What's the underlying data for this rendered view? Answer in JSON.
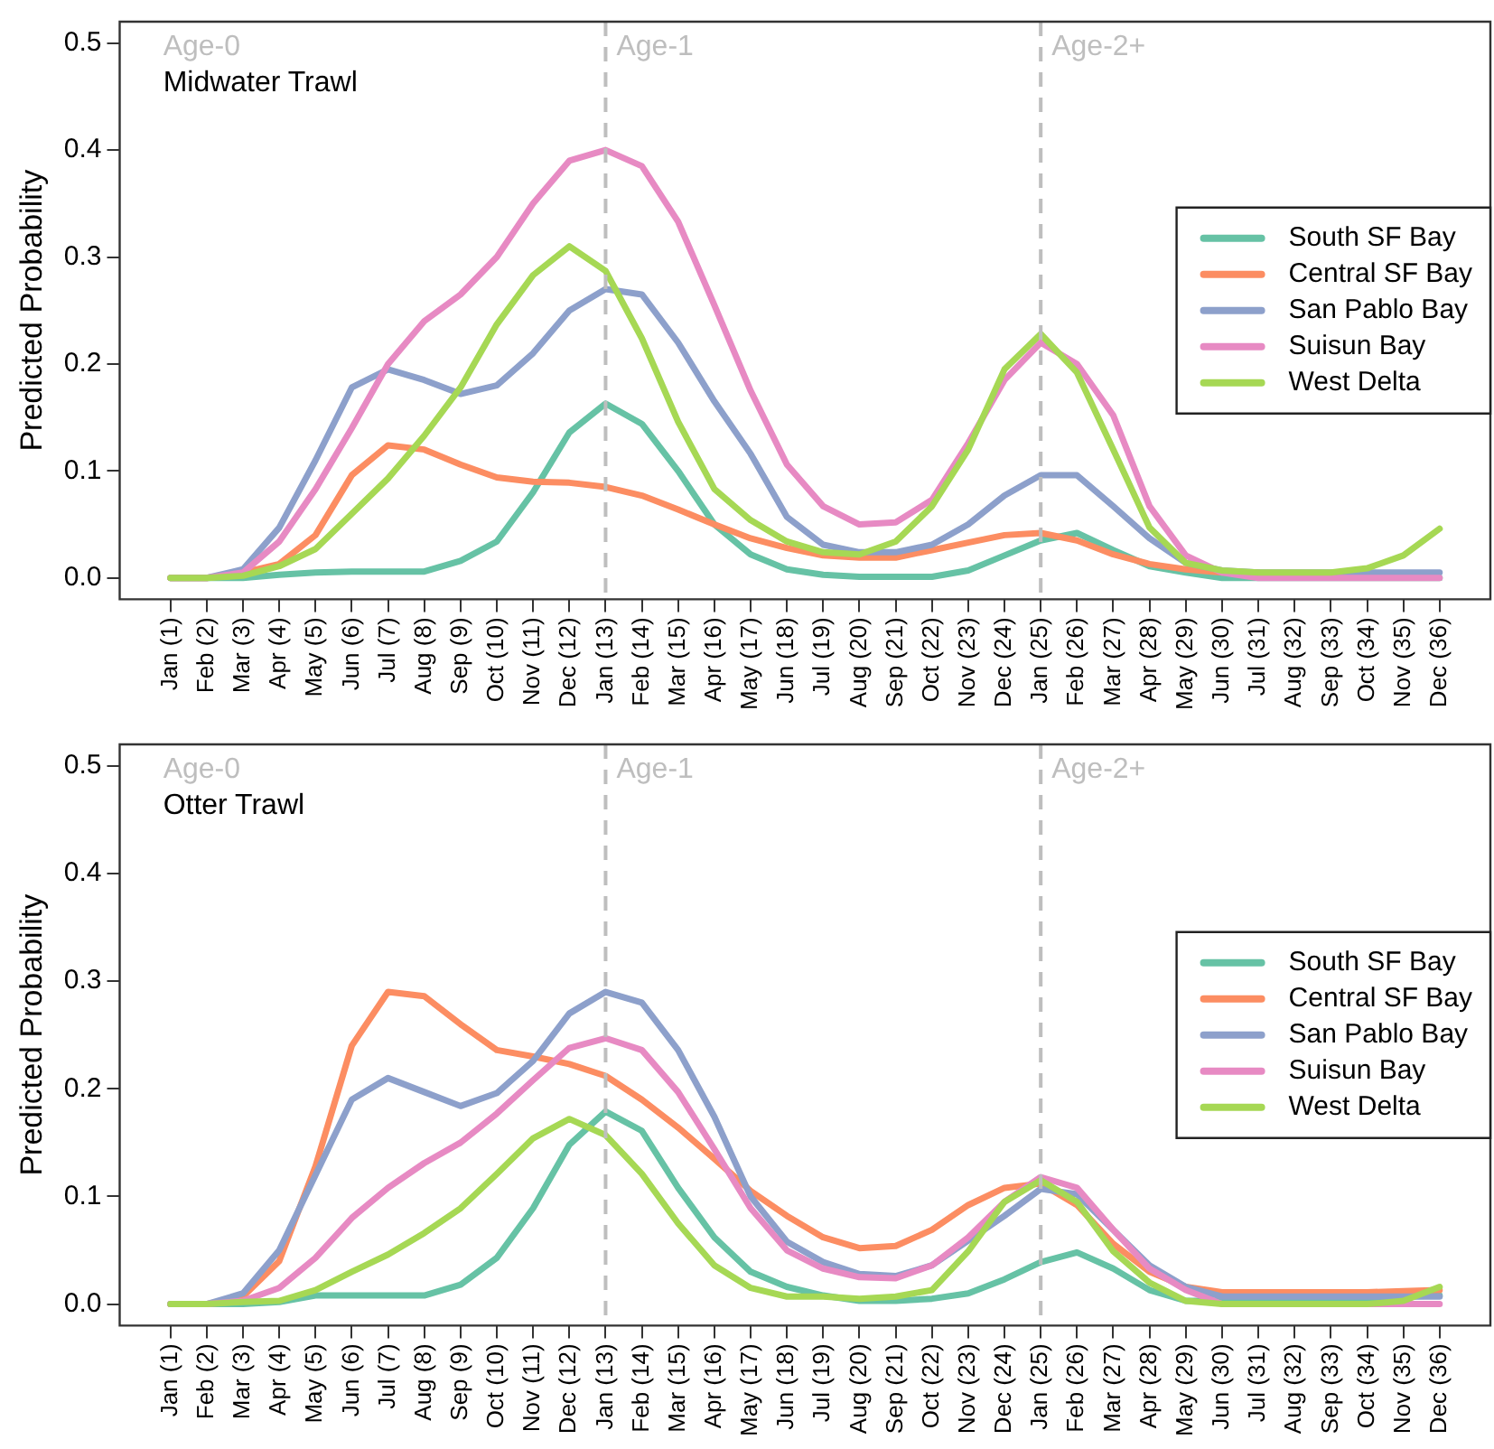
{
  "chart_data": [
    {
      "type": "line",
      "title": "Midwater Trawl",
      "ylabel": "Predicted Probability",
      "categories": [
        "Jan (1)",
        "Feb (2)",
        "Mar (3)",
        "Apr (4)",
        "May (5)",
        "Jun (6)",
        "Jul (7)",
        "Aug (8)",
        "Sep (9)",
        "Oct (10)",
        "Nov (11)",
        "Dec (12)",
        "Jan (13)",
        "Feb (14)",
        "Mar (15)",
        "Apr (16)",
        "May (17)",
        "Jun (18)",
        "Jul (19)",
        "Aug (20)",
        "Sep (21)",
        "Oct (22)",
        "Nov (23)",
        "Dec (24)",
        "Jan (25)",
        "Feb (26)",
        "Mar (27)",
        "Apr (28)",
        "May (29)",
        "Jun (30)",
        "Jul (31)",
        "Aug (32)",
        "Sep (33)",
        "Oct (34)",
        "Nov (35)",
        "Dec (36)"
      ],
      "ylim": [
        -0.02,
        0.52
      ],
      "yticks": [
        {
          "value": 0,
          "label": "0.0"
        },
        {
          "value": 0.1,
          "label": "0.1"
        },
        {
          "value": 0.2,
          "label": "0.2"
        },
        {
          "value": 0.3,
          "label": "0.3"
        },
        {
          "value": 0.4,
          "label": "0.4"
        },
        {
          "value": 0.5,
          "label": "0.5"
        }
      ],
      "series": [
        {
          "name": "South SF Bay",
          "color": "#66c2a5",
          "values": [
            0,
            0,
            0,
            0.003,
            0.005,
            0.006,
            0.006,
            0.006,
            0.016,
            0.034,
            0.08,
            0.136,
            0.163,
            0.144,
            0.1,
            0.05,
            0.022,
            0.008,
            0.003,
            0.001,
            0.001,
            0.001,
            0.007,
            0.021,
            0.035,
            0.042,
            0.026,
            0.011,
            0.005,
            0,
            0,
            0,
            0,
            0,
            0,
            0
          ]
        },
        {
          "name": "Central SF Bay",
          "color": "#fc8d62",
          "values": [
            0,
            0,
            0.005,
            0.013,
            0.04,
            0.096,
            0.124,
            0.12,
            0.106,
            0.094,
            0.09,
            0.089,
            0.085,
            0.077,
            0.064,
            0.05,
            0.037,
            0.028,
            0.021,
            0.019,
            0.019,
            0.026,
            0.033,
            0.04,
            0.042,
            0.035,
            0.022,
            0.013,
            0.008,
            0.005,
            0.005,
            null,
            null,
            null,
            null,
            null
          ]
        },
        {
          "name": "San Pablo Bay",
          "color": "#8da0cb",
          "values": [
            0,
            0,
            0.008,
            0.047,
            0.11,
            0.178,
            0.195,
            0.185,
            0.172,
            0.18,
            0.21,
            0.25,
            0.27,
            0.265,
            0.22,
            0.165,
            0.116,
            0.057,
            0.031,
            0.024,
            0.024,
            0.031,
            0.05,
            0.077,
            0.096,
            0.096,
            0.067,
            0.037,
            0.014,
            0.007,
            0.005,
            0.005,
            0.005,
            0.005,
            0.005,
            0.005
          ]
        },
        {
          "name": "Suisun Bay",
          "color": "#e78ac3",
          "values": [
            0,
            0,
            0.005,
            0.034,
            0.083,
            0.14,
            0.2,
            0.24,
            0.265,
            0.3,
            0.35,
            0.39,
            0.4,
            0.385,
            0.333,
            0.255,
            0.175,
            0.106,
            0.067,
            0.05,
            0.052,
            0.073,
            0.126,
            0.185,
            0.22,
            0.2,
            0.152,
            0.067,
            0.021,
            0.005,
            0,
            0,
            0,
            0,
            0,
            0
          ]
        },
        {
          "name": "West Delta",
          "color": "#a6d854",
          "values": [
            0,
            0,
            0.002,
            0.011,
            0.027,
            0.06,
            0.093,
            0.133,
            0.178,
            0.237,
            0.283,
            0.31,
            0.287,
            0.224,
            0.146,
            0.083,
            0.054,
            0.034,
            0.024,
            0.022,
            0.034,
            0.067,
            0.12,
            0.195,
            0.228,
            0.192,
            0.12,
            0.047,
            0.014,
            0.007,
            0.005,
            0.005,
            0.005,
            0.009,
            0.021,
            0.046
          ]
        }
      ],
      "ref_lines": [
        {
          "axis": "x",
          "value": "Jan (13)",
          "label": "Age-1",
          "color": "#bebebe",
          "line_style": "dashed"
        },
        {
          "axis": "x",
          "value": "Jan (25)",
          "label": "Age-2+",
          "color": "#bebebe",
          "line_style": "dashed"
        }
      ],
      "annotations": [
        "Age-0"
      ],
      "legend": "right",
      "grid": false,
      "marker": "none"
    },
    {
      "type": "line",
      "title": "Otter Trawl",
      "ylabel": "Predicted Probability",
      "categories": [
        "Jan (1)",
        "Feb (2)",
        "Mar (3)",
        "Apr (4)",
        "May (5)",
        "Jun (6)",
        "Jul (7)",
        "Aug (8)",
        "Sep (9)",
        "Oct (10)",
        "Nov (11)",
        "Dec (12)",
        "Jan (13)",
        "Feb (14)",
        "Mar (15)",
        "Apr (16)",
        "May (17)",
        "Jun (18)",
        "Jul (19)",
        "Aug (20)",
        "Sep (21)",
        "Oct (22)",
        "Nov (23)",
        "Dec (24)",
        "Jan (25)",
        "Feb (26)",
        "Mar (27)",
        "Apr (28)",
        "May (29)",
        "Jun (30)",
        "Jul (31)",
        "Aug (32)",
        "Sep (33)",
        "Oct (34)",
        "Nov (35)",
        "Dec (36)"
      ],
      "ylim": [
        -0.02,
        0.52
      ],
      "yticks": [
        {
          "value": 0,
          "label": "0.0"
        },
        {
          "value": 0.1,
          "label": "0.1"
        },
        {
          "value": 0.2,
          "label": "0.2"
        },
        {
          "value": 0.3,
          "label": "0.3"
        },
        {
          "value": 0.4,
          "label": "0.4"
        },
        {
          "value": 0.5,
          "label": "0.5"
        }
      ],
      "series": [
        {
          "name": "South SF Bay",
          "color": "#66c2a5",
          "values": [
            0,
            0,
            0,
            0.002,
            0.008,
            0.008,
            0.008,
            0.008,
            0.018,
            0.043,
            0.089,
            0.148,
            0.179,
            0.161,
            0.108,
            0.062,
            0.03,
            0.016,
            0.008,
            0.003,
            0.003,
            0.005,
            0.01,
            0.023,
            0.039,
            0.048,
            0.033,
            0.013,
            0.003,
            0.003,
            0.003,
            0.003,
            0.003,
            0.003,
            0.007,
            0.008
          ]
        },
        {
          "name": "Central SF Bay",
          "color": "#fc8d62",
          "values": [
            0,
            0,
            0.007,
            0.04,
            0.128,
            0.24,
            0.29,
            0.286,
            0.26,
            0.236,
            0.23,
            0.223,
            0.212,
            0.19,
            0.164,
            0.135,
            0.105,
            0.082,
            0.062,
            0.052,
            0.054,
            0.069,
            0.092,
            0.108,
            0.112,
            0.092,
            0.056,
            0.03,
            0.016,
            0.011,
            0.011,
            0.011,
            0.011,
            0.011,
            0.012,
            0.013
          ]
        },
        {
          "name": "San Pablo Bay",
          "color": "#8da0cb",
          "values": [
            0,
            0,
            0.01,
            0.05,
            0.12,
            0.19,
            0.21,
            0.197,
            0.184,
            0.196,
            0.226,
            0.27,
            0.29,
            0.28,
            0.236,
            0.174,
            0.1,
            0.058,
            0.039,
            0.028,
            0.026,
            0.036,
            0.059,
            0.082,
            0.107,
            0.102,
            0.069,
            0.036,
            0.016,
            0.007,
            0.007,
            0.007,
            0.007,
            0.007,
            0.007,
            0.007
          ]
        },
        {
          "name": "Suisun Bay",
          "color": "#e78ac3",
          "values": [
            0,
            0,
            0.003,
            0.015,
            0.043,
            0.08,
            0.108,
            0.131,
            0.15,
            0.177,
            0.208,
            0.238,
            0.247,
            0.236,
            0.197,
            0.144,
            0.089,
            0.05,
            0.033,
            0.025,
            0.024,
            0.036,
            0.062,
            0.095,
            0.118,
            0.108,
            0.069,
            0.033,
            0.013,
            0,
            0,
            0,
            0,
            0,
            0,
            0
          ]
        },
        {
          "name": "West Delta",
          "color": "#a6d854",
          "values": [
            0,
            0,
            0.002,
            0.003,
            0.013,
            0.03,
            0.046,
            0.066,
            0.089,
            0.121,
            0.154,
            0.172,
            0.157,
            0.121,
            0.075,
            0.036,
            0.015,
            0.007,
            0.007,
            0.005,
            0.007,
            0.013,
            0.049,
            0.095,
            0.115,
            0.095,
            0.049,
            0.02,
            0.003,
            0,
            0,
            0,
            0,
            0,
            0.003,
            0.016
          ]
        }
      ],
      "ref_lines": [
        {
          "axis": "x",
          "value": "Jan (13)",
          "label": "Age-1",
          "color": "#bebebe",
          "line_style": "dashed"
        },
        {
          "axis": "x",
          "value": "Jan (25)",
          "label": "Age-2+",
          "color": "#bebebe",
          "line_style": "dashed"
        }
      ],
      "annotations": [
        "Age-0"
      ],
      "legend": "right",
      "grid": false,
      "marker": "none"
    }
  ]
}
